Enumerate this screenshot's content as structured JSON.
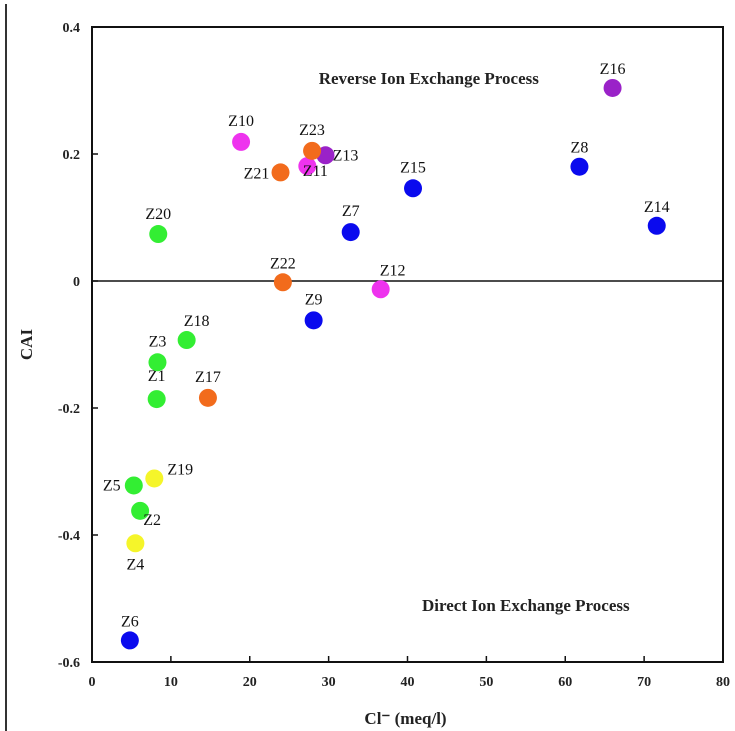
{
  "chart_data": {
    "type": "scatter",
    "title": "",
    "xlabel": "Cl⁻ (meq/l)",
    "ylabel": "CAI",
    "xlim": [
      0,
      80
    ],
    "ylim": [
      -0.6,
      0.4
    ],
    "xticks": [
      "0",
      "10",
      "20",
      "30",
      "40",
      "50",
      "60",
      "70",
      "80"
    ],
    "yticks": [
      "0.4",
      "0.2",
      "0",
      "-0.2",
      "-0.4",
      "-0.6"
    ],
    "grid": false,
    "legend": "none",
    "reference_line": {
      "y": 0
    },
    "annotations": [
      {
        "text": "Reverse Ion Exchange Process",
        "x": 42.7,
        "y": 0.31
      },
      {
        "text": "Direct Ion Exchange Process",
        "x": 55.0,
        "y": -0.52
      }
    ],
    "colors": {
      "green": "#33ee33",
      "blue": "#0a0aee",
      "orange": "#f26b1c",
      "magenta": "#ee33ee",
      "purple": "#9a22c8",
      "yellow": "#f5f52a"
    },
    "points": [
      {
        "label": "Z1",
        "x": 8.2,
        "y": -0.186,
        "color": "green"
      },
      {
        "label": "Z2",
        "x": 6.1,
        "y": -0.362,
        "color": "green"
      },
      {
        "label": "Z3",
        "x": 8.3,
        "y": -0.128,
        "color": "green"
      },
      {
        "label": "Z4",
        "x": 5.5,
        "y": -0.413,
        "color": "yellow"
      },
      {
        "label": "Z5",
        "x": 5.3,
        "y": -0.322,
        "color": "green"
      },
      {
        "label": "Z6",
        "x": 4.8,
        "y": -0.566,
        "color": "blue"
      },
      {
        "label": "Z7",
        "x": 32.8,
        "y": 0.077,
        "color": "blue"
      },
      {
        "label": "Z8",
        "x": 61.8,
        "y": 0.18,
        "color": "blue"
      },
      {
        "label": "Z9",
        "x": 28.1,
        "y": -0.062,
        "color": "blue"
      },
      {
        "label": "Z10",
        "x": 18.9,
        "y": 0.219,
        "color": "magenta"
      },
      {
        "label": "Z11",
        "x": 27.3,
        "y": 0.181,
        "color": "magenta"
      },
      {
        "label": "Z12",
        "x": 36.6,
        "y": -0.013,
        "color": "magenta"
      },
      {
        "label": "Z13",
        "x": 29.6,
        "y": 0.198,
        "color": "purple"
      },
      {
        "label": "Z14",
        "x": 71.6,
        "y": 0.087,
        "color": "blue"
      },
      {
        "label": "Z15",
        "x": 40.7,
        "y": 0.146,
        "color": "blue"
      },
      {
        "label": "Z16",
        "x": 66.0,
        "y": 0.304,
        "color": "purple"
      },
      {
        "label": "Z17",
        "x": 14.7,
        "y": -0.184,
        "color": "orange"
      },
      {
        "label": "Z18",
        "x": 12.0,
        "y": -0.093,
        "color": "green"
      },
      {
        "label": "Z19",
        "x": 7.9,
        "y": -0.311,
        "color": "yellow"
      },
      {
        "label": "Z20",
        "x": 8.4,
        "y": 0.074,
        "color": "green"
      },
      {
        "label": "Z21",
        "x": 23.9,
        "y": 0.171,
        "color": "orange"
      },
      {
        "label": "Z22",
        "x": 24.2,
        "y": -0.002,
        "color": "orange"
      },
      {
        "label": "Z23",
        "x": 27.9,
        "y": 0.205,
        "color": "orange"
      }
    ]
  }
}
